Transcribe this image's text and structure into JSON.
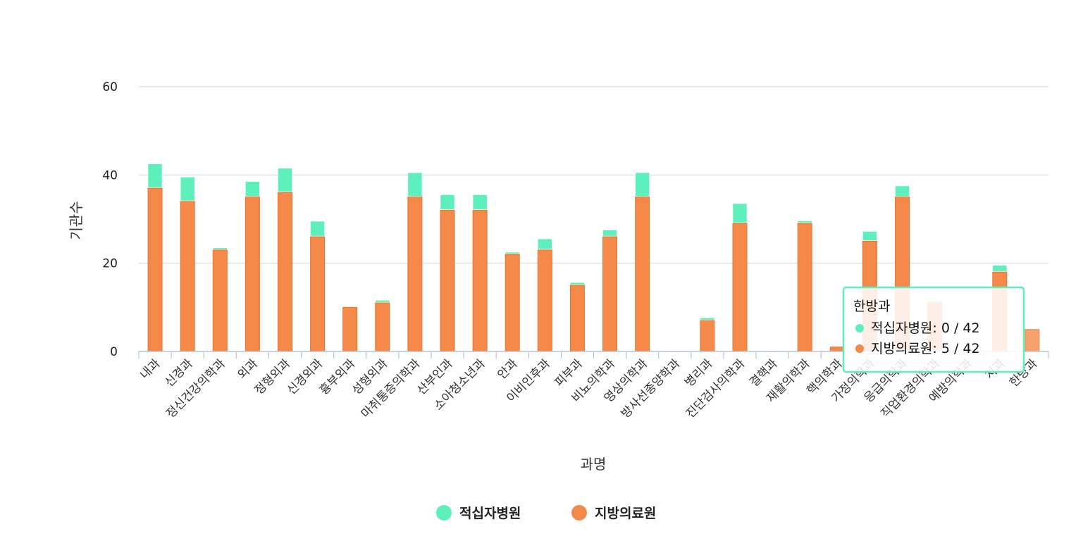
{
  "chart_data": {
    "type": "bar",
    "stacked": true,
    "xlabel": "과명",
    "ylabel": "기관수",
    "ylim": [
      0,
      60
    ],
    "yticks": [
      0,
      20,
      40,
      60
    ],
    "grid": true,
    "legend_position": "bottom-center",
    "categories": [
      "내과",
      "신경과",
      "정신건강의학과",
      "외과",
      "정형외과",
      "신경외과",
      "흉부외과",
      "성형외과",
      "마취통증의학과",
      "산부인과",
      "소아청소년과",
      "안과",
      "이비인후과",
      "피부과",
      "비뇨의학과",
      "영상의학과",
      "방사선종양학과",
      "병리과",
      "진단검사의학과",
      "결핵과",
      "재활의학과",
      "핵의학과",
      "가정의학과",
      "응급의학과",
      "직업환경의학과",
      "예방의학과",
      "치과",
      "한방과"
    ],
    "series": [
      {
        "name": "지방의료원",
        "color": "#f5894a",
        "values": [
          37,
          34,
          23,
          35,
          36,
          26,
          10,
          11,
          35,
          32,
          32,
          22,
          23,
          15,
          26,
          35,
          0,
          7,
          29,
          0,
          29,
          1,
          25,
          35,
          11,
          0,
          18,
          5
        ]
      },
      {
        "name": "적십자병원",
        "color": "#5ef0bc",
        "values": [
          5.5,
          5.5,
          0.5,
          3.5,
          5.5,
          3.5,
          0,
          0.6,
          5.5,
          3.5,
          3.5,
          0.5,
          2.5,
          0.6,
          1.5,
          5.5,
          0,
          0.6,
          4.5,
          0,
          0.6,
          0,
          2.2,
          2.5,
          0.5,
          0,
          1.5,
          0
        ]
      }
    ]
  },
  "tooltip": {
    "title": "한방과",
    "rows": [
      {
        "series": "적십자병원",
        "color": "#5ef0bc",
        "text": "적십자병원: 0  /  42"
      },
      {
        "series": "지방의료원",
        "color": "#f5894a",
        "text": "지방의료원: 5  /  42"
      }
    ]
  }
}
